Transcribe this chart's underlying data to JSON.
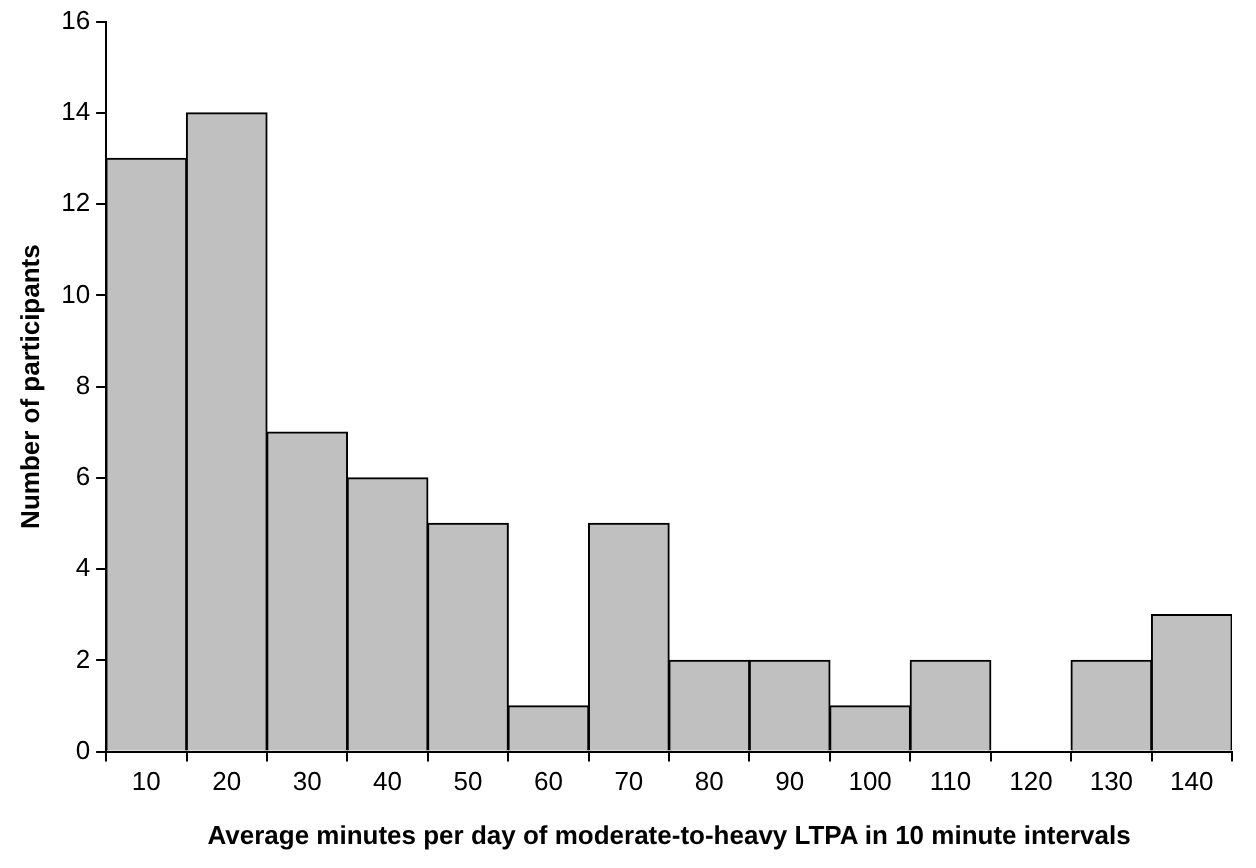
{
  "chart_data": {
    "type": "bar",
    "xlabel": "Average minutes per day of moderate-to-heavy LTPA in 10 minute intervals",
    "ylabel": "Number of participants",
    "categories": [
      "10",
      "20",
      "30",
      "40",
      "50",
      "60",
      "70",
      "80",
      "90",
      "100",
      "110",
      "120",
      "130",
      "140"
    ],
    "values": [
      13,
      14,
      7,
      6,
      5,
      1,
      5,
      2,
      2,
      1,
      2,
      0,
      2,
      3
    ],
    "color": "#c0c0c0",
    "ylim": [
      0,
      16
    ],
    "yticks": [
      0,
      2,
      4,
      6,
      8,
      10,
      12,
      14,
      16
    ],
    "grid": false,
    "legend": false
  }
}
